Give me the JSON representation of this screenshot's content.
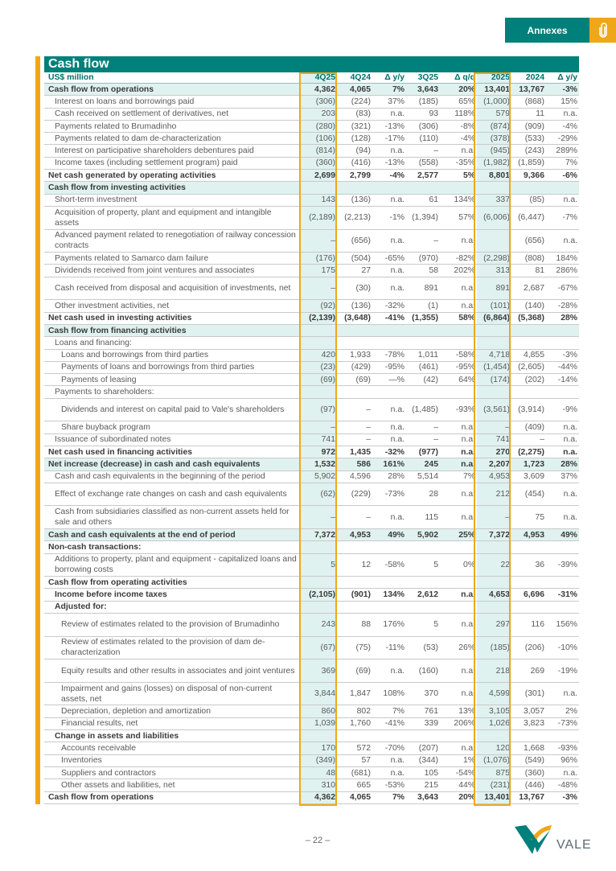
{
  "header": {
    "section_tab": "Annexes",
    "tab_icon": "paperclip-icon"
  },
  "title": "Cash flow",
  "colors": {
    "teal": "#00807a",
    "orange": "#efa71a",
    "shade": "#dff2ef"
  },
  "table": {
    "columns": [
      "US$ million",
      "4Q25",
      "4Q24",
      "Δ y/y",
      "3Q25",
      "Δ q/q",
      "2025",
      "2024",
      "Δ y/y"
    ],
    "rows": [
      {
        "label": "Cash flow from operations",
        "values": [
          "4,362",
          "4,065",
          "7%",
          "3,643",
          "20%",
          "13,401",
          "13,767",
          "-3%"
        ],
        "style": "shade",
        "indent": 0
      },
      {
        "label": "Interest on loans and borrowings paid",
        "values": [
          "(306)",
          "(224)",
          "37%",
          "(185)",
          "65%",
          "(1,000)",
          "(868)",
          "15%"
        ],
        "style": "normal",
        "indent": 1
      },
      {
        "label": "Cash received on settlement of derivatives, net",
        "values": [
          "203",
          "(83)",
          "n.a.",
          "93",
          "118%",
          "579",
          "11",
          "n.a."
        ],
        "style": "normal",
        "indent": 1
      },
      {
        "label": "Payments related to Brumadinho",
        "values": [
          "(280)",
          "(321)",
          "-13%",
          "(306)",
          "-8%",
          "(874)",
          "(909)",
          "-4%"
        ],
        "style": "normal",
        "indent": 1
      },
      {
        "label": "Payments related to dam de-characterization",
        "values": [
          "(106)",
          "(128)",
          "-17%",
          "(110)",
          "-4%",
          "(378)",
          "(533)",
          "-29%"
        ],
        "style": "normal",
        "indent": 1
      },
      {
        "label": "Interest on participative shareholders debentures paid",
        "values": [
          "(814)",
          "(94)",
          "n.a.",
          "–",
          "n.a.",
          "(945)",
          "(243)",
          "289%"
        ],
        "style": "normal",
        "indent": 1
      },
      {
        "label": "Income taxes (including settlement program) paid",
        "values": [
          "(360)",
          "(416)",
          "-13%",
          "(558)",
          "-35%",
          "(1,982)",
          "(1,859)",
          "7%"
        ],
        "style": "normal",
        "indent": 1
      },
      {
        "label": "Net cash generated by operating activities",
        "values": [
          "2,699",
          "2,799",
          "-4%",
          "2,577",
          "5%",
          "8,801",
          "9,366",
          "-6%"
        ],
        "style": "bold",
        "indent": 0
      },
      {
        "label": "Cash flow from investing activities",
        "values": [
          "",
          "",
          "",
          "",
          "",
          "",
          "",
          ""
        ],
        "style": "shade",
        "indent": 0
      },
      {
        "label": "Short-term investment",
        "values": [
          "143",
          "(136)",
          "n.a.",
          "61",
          "134%",
          "337",
          "(85)",
          "n.a."
        ],
        "style": "normal",
        "indent": 1
      },
      {
        "label": "Acquisition of property, plant and equipment and intangible assets",
        "values": [
          "(2,189)",
          "(2,213)",
          "-1%",
          "(1,394)",
          "57%",
          "(6,006)",
          "(6,447)",
          "-7%"
        ],
        "style": "normal",
        "indent": 1,
        "double": true
      },
      {
        "label": "Advanced payment related to renegotiation of railway concession contracts",
        "values": [
          "–",
          "(656)",
          "n.a.",
          "–",
          "n.a.",
          "",
          "(656)",
          "n.a."
        ],
        "style": "normal",
        "indent": 1,
        "double": true
      },
      {
        "label": "Payments related to Samarco dam failure",
        "values": [
          "(176)",
          "(504)",
          "-65%",
          "(970)",
          "-82%",
          "(2,298)",
          "(808)",
          "184%"
        ],
        "style": "normal",
        "indent": 1
      },
      {
        "label": "Dividends received from joint ventures and associates",
        "values": [
          "175",
          "27",
          "n.a.",
          "58",
          "202%",
          "313",
          "81",
          "286%"
        ],
        "style": "normal",
        "indent": 1
      },
      {
        "label": "Cash received from disposal and acquisition of investments, net",
        "values": [
          "–",
          "(30)",
          "n.a.",
          "891",
          "n.a.",
          "891",
          "2,687",
          "-67%"
        ],
        "style": "normal",
        "indent": 1,
        "double": true
      },
      {
        "label": "Other investment activities, net",
        "values": [
          "(92)",
          "(136)",
          "-32%",
          "(1)",
          "n.a.",
          "(101)",
          "(140)",
          "-28%"
        ],
        "style": "normal",
        "indent": 1
      },
      {
        "label": "Net cash used in investing activities",
        "values": [
          "(2,139)",
          "(3,648)",
          "-41%",
          "(1,355)",
          "58%",
          "(6,864)",
          "(5,368)",
          "28%"
        ],
        "style": "bold",
        "indent": 0
      },
      {
        "label": "Cash flow from financing activities",
        "values": [
          "",
          "",
          "",
          "",
          "",
          "",
          "",
          ""
        ],
        "style": "shade",
        "indent": 0
      },
      {
        "label": "Loans and financing:",
        "values": [
          "",
          "",
          "",
          "",
          "",
          "",
          "",
          ""
        ],
        "style": "normal",
        "indent": 1
      },
      {
        "label": "Loans and borrowings from third parties",
        "values": [
          "420",
          "1,933",
          "-78%",
          "1,011",
          "-58%",
          "4,718",
          "4,855",
          "-3%"
        ],
        "style": "normal",
        "indent": 2
      },
      {
        "label": "Payments of loans and borrowings from third parties",
        "values": [
          "(23)",
          "(429)",
          "-95%",
          "(461)",
          "-95%",
          "(1,454)",
          "(2,605)",
          "-44%"
        ],
        "style": "normal",
        "indent": 2
      },
      {
        "label": "Payments of leasing",
        "values": [
          "(69)",
          "(69)",
          "—%",
          "(42)",
          "64%",
          "(174)",
          "(202)",
          "-14%"
        ],
        "style": "normal",
        "indent": 2
      },
      {
        "label": "Payments to shareholders:",
        "values": [
          "",
          "",
          "",
          "",
          "",
          "",
          "",
          ""
        ],
        "style": "normal",
        "indent": 1
      },
      {
        "label": "Dividends and interest on capital paid to Vale's shareholders",
        "values": [
          "(97)",
          "–",
          "n.a.",
          "(1,485)",
          "-93%",
          "(3,561)",
          "(3,914)",
          "-9%"
        ],
        "style": "normal",
        "indent": 2,
        "double": true
      },
      {
        "label": "Share buyback program",
        "values": [
          "–",
          "–",
          "n.a.",
          "–",
          "n.a.",
          "–",
          "(409)",
          "n.a."
        ],
        "style": "normal",
        "indent": 2
      },
      {
        "label": "Issuance of subordinated notes",
        "values": [
          "741",
          "–",
          "n.a.",
          "–",
          "n.a.",
          "741",
          "–",
          "n.a."
        ],
        "style": "normal",
        "indent": 1
      },
      {
        "label": "Net cash used in financing activities",
        "values": [
          "972",
          "1,435",
          "-32%",
          "(977)",
          "n.a.",
          "270",
          "(2,275)",
          "n.a."
        ],
        "style": "bold",
        "indent": 0
      },
      {
        "label": "Net increase (decrease) in cash and cash equivalents",
        "values": [
          "1,532",
          "586",
          "161%",
          "245",
          "n.a.",
          "2,207",
          "1,723",
          "28%"
        ],
        "style": "shade",
        "indent": 0
      },
      {
        "label": "Cash and cash equivalents in the beginning of the period",
        "values": [
          "5,902",
          "4,596",
          "28%",
          "5,514",
          "7%",
          "4,953",
          "3,609",
          "37%"
        ],
        "style": "normal",
        "indent": 1
      },
      {
        "label": "Effect of exchange rate changes on cash and cash equivalents",
        "values": [
          "(62)",
          "(229)",
          "-73%",
          "28",
          "n.a.",
          "212",
          "(454)",
          "n.a."
        ],
        "style": "normal",
        "indent": 1,
        "double": true
      },
      {
        "label": "Cash from subsidiaries classified as non-current assets held for sale and others",
        "values": [
          "–",
          "–",
          "n.a.",
          "115",
          "n.a.",
          "–",
          "75",
          "n.a."
        ],
        "style": "normal",
        "indent": 1,
        "double": true
      },
      {
        "label": "Cash and cash equivalents at the end of period",
        "values": [
          "7,372",
          "4,953",
          "49%",
          "5,902",
          "25%",
          "7,372",
          "4,953",
          "49%"
        ],
        "style": "shade",
        "indent": 0
      },
      {
        "label": "Non-cash transactions:",
        "values": [
          "",
          "",
          "",
          "",
          "",
          "",
          "",
          ""
        ],
        "style": "bold",
        "indent": 0
      },
      {
        "label": "Additions to property, plant and equipment - capitalized loans and borrowing costs",
        "values": [
          "5",
          "12",
          "-58%",
          "5",
          "0%",
          "22",
          "36",
          "-39%"
        ],
        "style": "normal",
        "indent": 1,
        "double": true
      },
      {
        "label": "Cash flow from operating activities",
        "values": [
          "",
          "",
          "",
          "",
          "",
          "",
          "",
          ""
        ],
        "style": "bold",
        "indent": 0
      },
      {
        "label": "Income before income taxes",
        "values": [
          "(2,105)",
          "(901)",
          "134%",
          "2,612",
          "n.a.",
          "4,653",
          "6,696",
          "-31%"
        ],
        "style": "bold",
        "indent": 1
      },
      {
        "label": "Adjusted for:",
        "values": [
          "",
          "",
          "",
          "",
          "",
          "",
          "",
          ""
        ],
        "style": "bold",
        "indent": 1
      },
      {
        "label": "Review of estimates related to the provision of Brumadinho",
        "values": [
          "243",
          "88",
          "176%",
          "5",
          "n.a.",
          "297",
          "116",
          "156%"
        ],
        "style": "normal",
        "indent": 2,
        "double": true
      },
      {
        "label": "Review of estimates related to the provision of dam de-characterization",
        "values": [
          "(67)",
          "(75)",
          "-11%",
          "(53)",
          "26%",
          "(185)",
          "(206)",
          "-10%"
        ],
        "style": "normal",
        "indent": 2,
        "double": true
      },
      {
        "label": "Equity results and other results in associates and joint ventures",
        "values": [
          "369",
          "(69)",
          "n.a.",
          "(160)",
          "n.a.",
          "218",
          "269",
          "-19%"
        ],
        "style": "normal",
        "indent": 2,
        "double": true
      },
      {
        "label": "Impairment and gains (losses) on disposal of non-current assets, net",
        "values": [
          "3,844",
          "1,847",
          "108%",
          "370",
          "n.a.",
          "4,599",
          "(301)",
          "n.a."
        ],
        "style": "normal",
        "indent": 2,
        "double": true
      },
      {
        "label": "Depreciation, depletion and amortization",
        "values": [
          "860",
          "802",
          "7%",
          "761",
          "13%",
          "3,105",
          "3,057",
          "2%"
        ],
        "style": "normal",
        "indent": 2
      },
      {
        "label": "Financial results, net",
        "values": [
          "1,039",
          "1,760",
          "-41%",
          "339",
          "206%",
          "1,026",
          "3,823",
          "-73%"
        ],
        "style": "normal",
        "indent": 2
      },
      {
        "label": "Change in assets and liabilities",
        "values": [
          "",
          "",
          "",
          "",
          "",
          "",
          "",
          ""
        ],
        "style": "bold",
        "indent": 1
      },
      {
        "label": "Accounts receivable",
        "values": [
          "170",
          "572",
          "-70%",
          "(207)",
          "n.a.",
          "120",
          "1,668",
          "-93%"
        ],
        "style": "normal",
        "indent": 2
      },
      {
        "label": "Inventories",
        "values": [
          "(349)",
          "57",
          "n.a.",
          "(344)",
          "1%",
          "(1,076)",
          "(549)",
          "96%"
        ],
        "style": "normal",
        "indent": 2
      },
      {
        "label": "Suppliers and contractors",
        "values": [
          "48",
          "(681)",
          "n.a.",
          "105",
          "-54%",
          "875",
          "(360)",
          "n.a."
        ],
        "style": "normal",
        "indent": 2
      },
      {
        "label": "Other assets and liabilities, net",
        "values": [
          "310",
          "665",
          "-53%",
          "215",
          "44%",
          "(231)",
          "(446)",
          "-48%"
        ],
        "style": "normal",
        "indent": 2
      },
      {
        "label": "Cash flow from operations",
        "values": [
          "4,362",
          "4,065",
          "7%",
          "3,643",
          "20%",
          "13,401",
          "13,767",
          "-3%"
        ],
        "style": "bold",
        "indent": 0
      }
    ]
  },
  "footer": {
    "page_number": "– 22 –",
    "logo_text": "VALE"
  }
}
